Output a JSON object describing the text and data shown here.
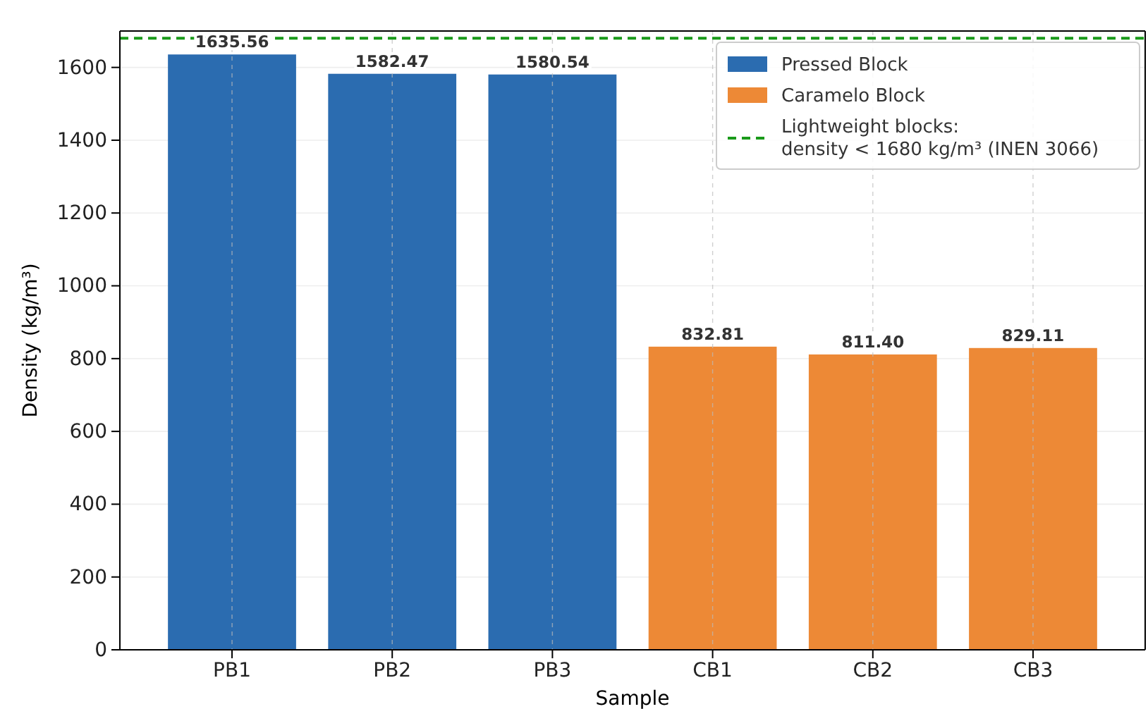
{
  "chart_data": {
    "type": "bar",
    "xlabel": "Sample",
    "ylabel": "Density (kg/m³)",
    "categories": [
      "PB1",
      "PB2",
      "PB3",
      "CB1",
      "CB2",
      "CB3"
    ],
    "series": [
      {
        "name": "Pressed Block",
        "color": "#2b6cb0",
        "values": [
          1635.56,
          1582.47,
          1580.54,
          null,
          null,
          null
        ],
        "value_labels": [
          "1635.56",
          "1582.47",
          "1580.54",
          null,
          null,
          null
        ]
      },
      {
        "name": "Caramelo Block",
        "color": "#ed8936",
        "values": [
          null,
          null,
          null,
          832.81,
          811.4,
          829.11
        ],
        "value_labels": [
          null,
          null,
          null,
          "832.81",
          "811.40",
          "829.11"
        ]
      }
    ],
    "ylim": [
      0,
      1700
    ],
    "yticks": [
      0,
      200,
      400,
      600,
      800,
      1000,
      1200,
      1400,
      1600
    ],
    "grid": true,
    "legend": "top right",
    "ref_lines": [
      {
        "axis": "y",
        "value": 1680,
        "label": "Lightweight blocks:\ndensity < 1680 kg/m³ (INEN 3066)",
        "color": "#1a9a1a",
        "line_style": "dashed"
      }
    ]
  }
}
